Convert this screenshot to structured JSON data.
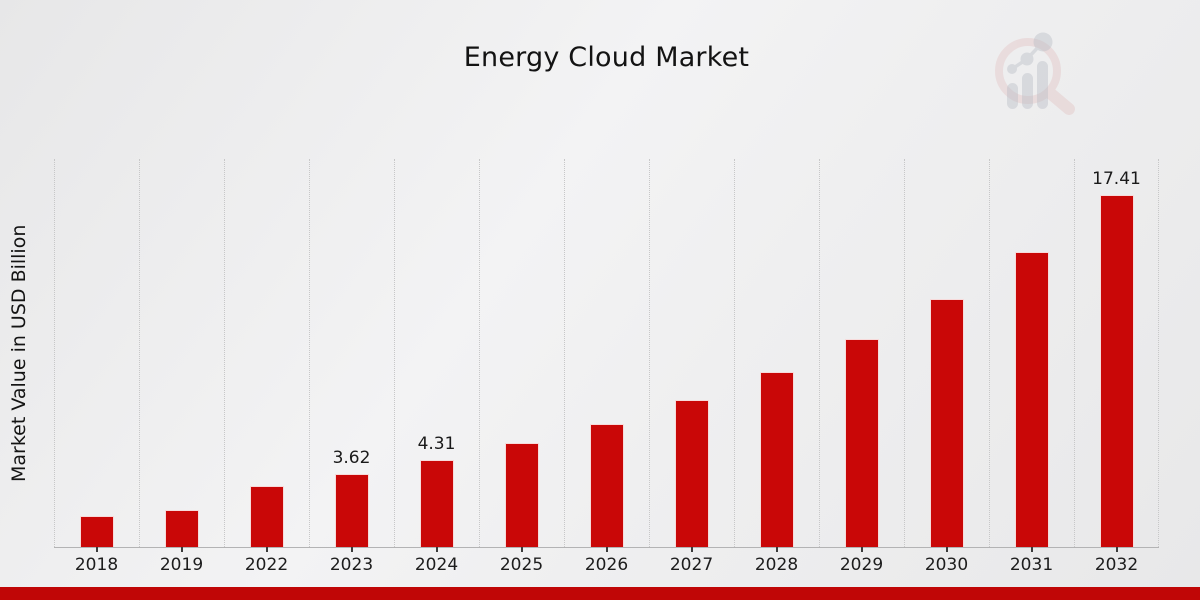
{
  "header": {
    "title": "Energy Cloud Market"
  },
  "footer": {
    "accent_bar_color": "#c00606"
  },
  "logo": {
    "name": "bar-chart-magnifier-watermark",
    "ring_color": "#dfb6b6",
    "glyph_color": "#b9bdc6"
  },
  "chart_data": {
    "type": "bar",
    "title": "Energy Cloud Market",
    "xlabel": "",
    "ylabel": "Market Value in USD Billion",
    "categories": [
      "2018",
      "2019",
      "2022",
      "2023",
      "2024",
      "2025",
      "2026",
      "2027",
      "2028",
      "2029",
      "2030",
      "2031",
      "2032"
    ],
    "values": [
      1.52,
      1.81,
      3.04,
      3.62,
      4.31,
      5.13,
      6.11,
      7.27,
      8.66,
      10.31,
      12.27,
      14.61,
      17.41
    ],
    "data_labels": {
      "2023": "3.62",
      "2024": "4.31",
      "2032": "17.41"
    },
    "ylim": [
      0,
      19.2
    ],
    "bar_color": "#c90707",
    "gridlines": "vertical-dotted",
    "legend": "none",
    "axis_line_color": "#b3b3b4",
    "gridline_color": "#c7c7c8"
  }
}
